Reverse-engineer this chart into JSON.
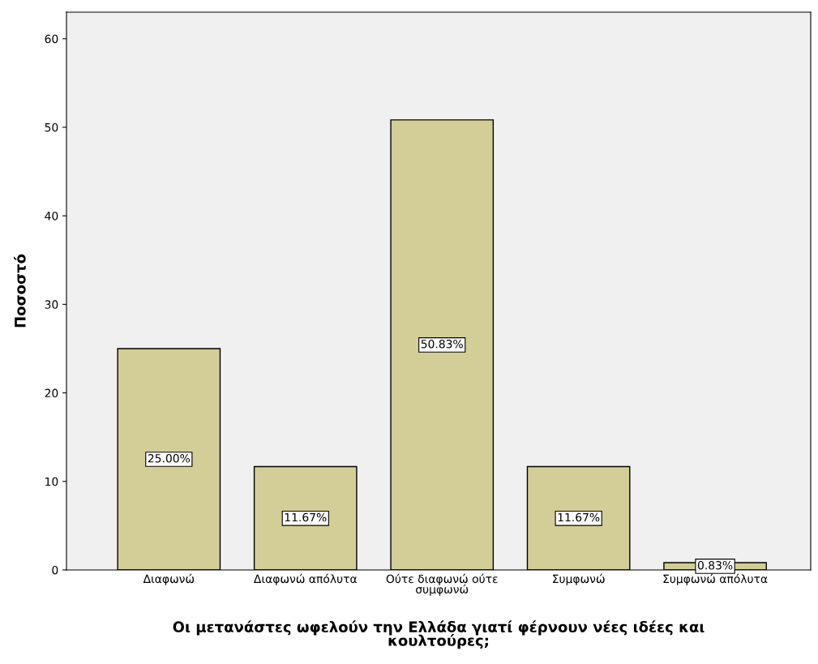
{
  "chart_data": {
    "type": "bar",
    "xlabel": "Οι μετανάστες ωφελούν την Ελλάδα γιατί φέρνουν νέες ιδέες και\nκουλτούρες;",
    "ylabel": "Ποσοστό",
    "categories": [
      "Διαφωνώ",
      "Διαφωνώ απόλυτα",
      "Ούτε διαφωνώ ούτε\nσυμφωνώ",
      "Συμφωνώ",
      "Συμφωνώ απόλυτα"
    ],
    "values": [
      25.0,
      11.67,
      50.83,
      11.67,
      0.83
    ],
    "value_labels": [
      "25.00%",
      "11.67%",
      "50.83%",
      "11.67%",
      "0.83%"
    ],
    "color": "#d3ce97",
    "ylim": [
      0,
      63
    ],
    "yticks": [
      0,
      10,
      20,
      30,
      40,
      50,
      60
    ],
    "grid": false,
    "legend": false
  }
}
